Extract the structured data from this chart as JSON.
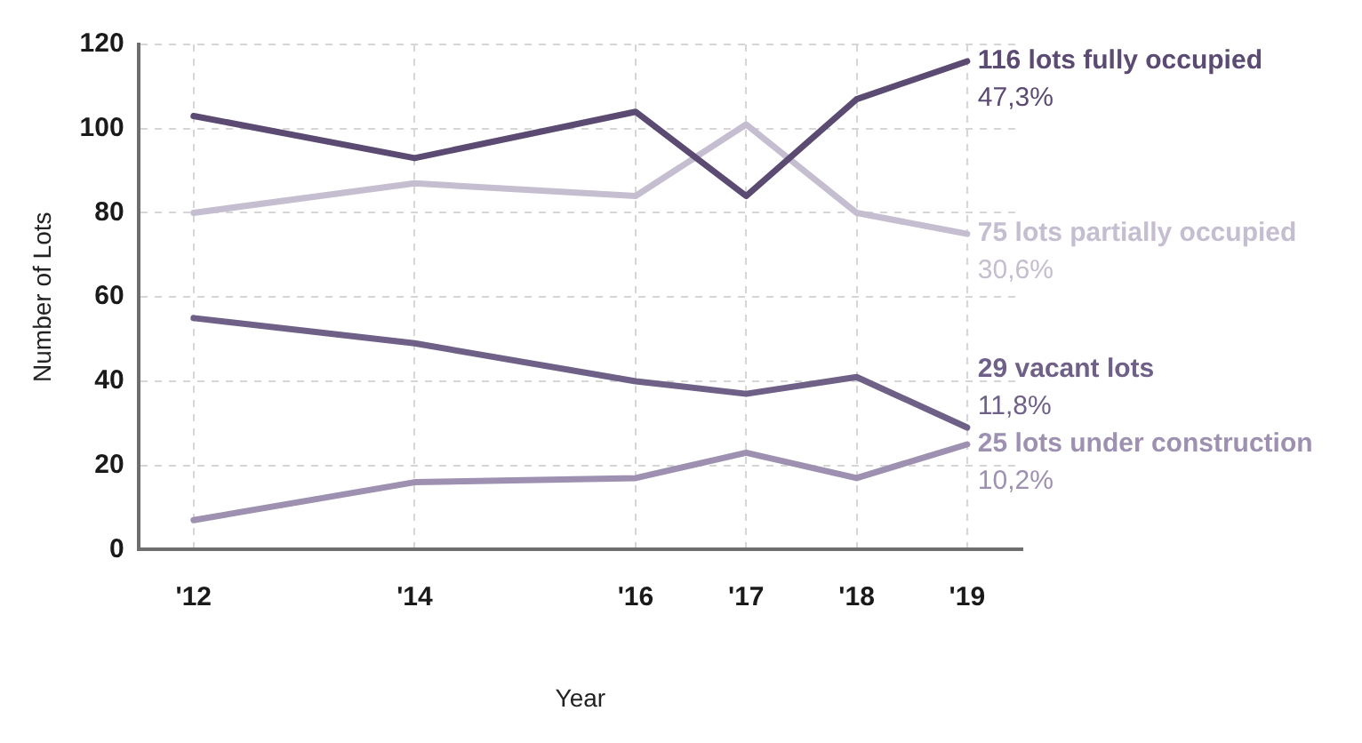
{
  "chart_data": {
    "type": "line",
    "xlabel": "Year",
    "ylabel": "Number of Lots",
    "x": [
      2012,
      2014,
      2016,
      2017,
      2018,
      2019
    ],
    "xlim": [
      2011.5,
      2019.5
    ],
    "xticks": [
      {
        "value": 2012,
        "label": "'12"
      },
      {
        "value": 2014,
        "label": "'14"
      },
      {
        "value": 2016,
        "label": "'16"
      },
      {
        "value": 2017,
        "label": "'17"
      },
      {
        "value": 2018,
        "label": "'18"
      },
      {
        "value": 2019,
        "label": "'19"
      }
    ],
    "ylim": [
      0,
      120
    ],
    "yticks": [
      0,
      20,
      40,
      60,
      80,
      100,
      120
    ],
    "grid": true,
    "legend": false,
    "marker": "none",
    "line_style": "solid",
    "series": [
      {
        "name": "116 lots fully occupied",
        "color": "#5b4a72",
        "values": [
          103,
          93,
          104,
          84,
          107,
          116
        ]
      },
      {
        "name": "75 lots partially occupied",
        "color": "#c5bdd0",
        "values": [
          80,
          87,
          84,
          101,
          80,
          75
        ]
      },
      {
        "name": "29 vacant lots",
        "color": "#6f6088",
        "values": [
          55,
          49,
          40,
          37,
          41,
          29
        ]
      },
      {
        "name": "25 lots under construction",
        "color": "#9d90b0",
        "values": [
          7,
          16,
          17,
          23,
          17,
          25
        ]
      }
    ],
    "annotations": [
      "47,3%",
      "30,6%",
      "11,8%",
      "10,2%"
    ]
  }
}
